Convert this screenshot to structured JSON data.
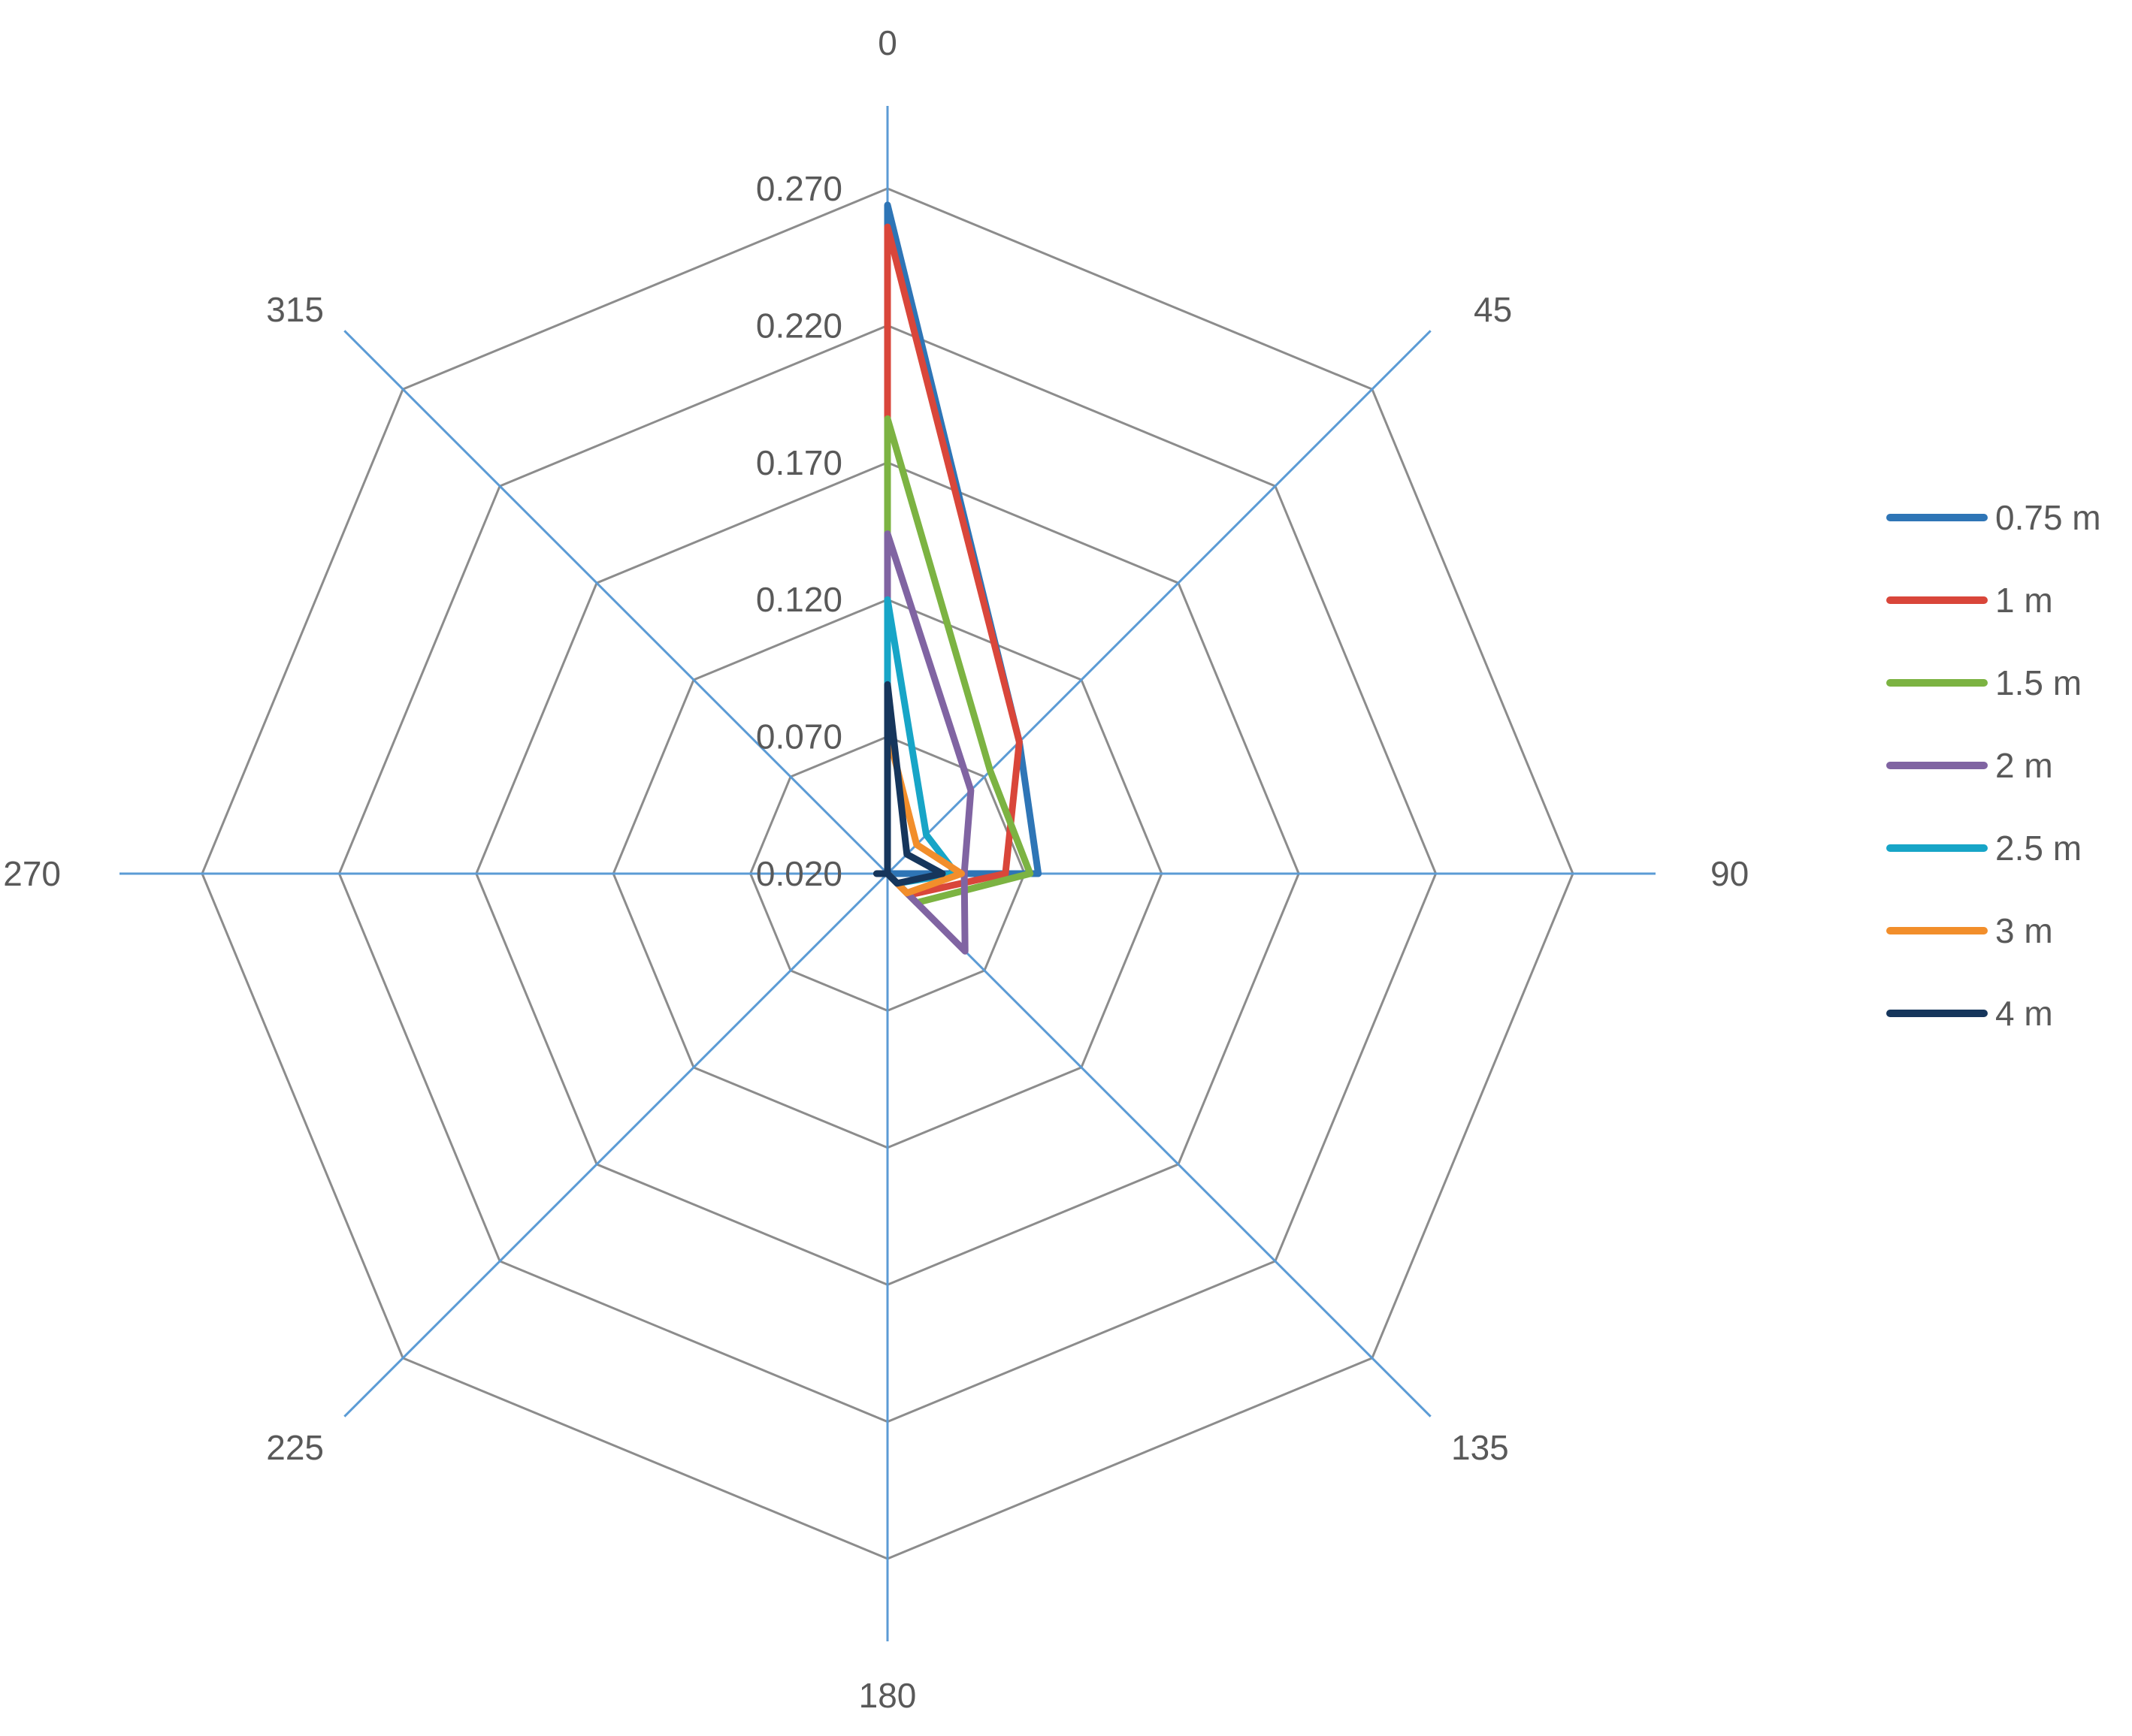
{
  "chart_data": {
    "type": "radar",
    "categories": [
      "0",
      "45",
      "90",
      "135",
      "180",
      "225",
      "270",
      "315"
    ],
    "radial_ticks": [
      "0.020",
      "0.070",
      "0.120",
      "0.170",
      "0.220",
      "0.270"
    ],
    "rlim": [
      0.02,
      0.27
    ],
    "grid": true,
    "legend_position": "right",
    "series": [
      {
        "name": "0.75 m",
        "color": "#2e75b6",
        "values": [
          0.264,
          0.088,
          0.075,
          0.02,
          0.02,
          0.02,
          0.02,
          0.02
        ]
      },
      {
        "name": "1 m",
        "color": "#d9463a",
        "values": [
          0.256,
          0.088,
          0.063,
          0.031,
          0.02,
          0.02,
          0.02,
          0.02
        ]
      },
      {
        "name": "1.5 m",
        "color": "#7cb342",
        "values": [
          0.186,
          0.073,
          0.072,
          0.035,
          0.02,
          0.02,
          0.02,
          0.02
        ]
      },
      {
        "name": "2 m",
        "color": "#8064a2",
        "values": [
          0.144,
          0.063,
          0.048,
          0.06,
          0.02,
          0.02,
          0.02,
          0.02
        ]
      },
      {
        "name": "2.5 m",
        "color": "#17a5c7",
        "values": [
          0.12,
          0.04,
          0.045,
          0.025,
          0.02,
          0.02,
          0.02,
          0.02
        ]
      },
      {
        "name": "3 m",
        "color": "#f28e2b",
        "values": [
          0.072,
          0.035,
          0.047,
          0.03,
          0.02,
          0.02,
          0.02,
          0.02
        ]
      },
      {
        "name": "4 m",
        "color": "#16365c",
        "values": [
          0.089,
          0.03,
          0.04,
          0.025,
          0.02,
          0.02,
          0.024,
          0.02
        ]
      }
    ]
  }
}
